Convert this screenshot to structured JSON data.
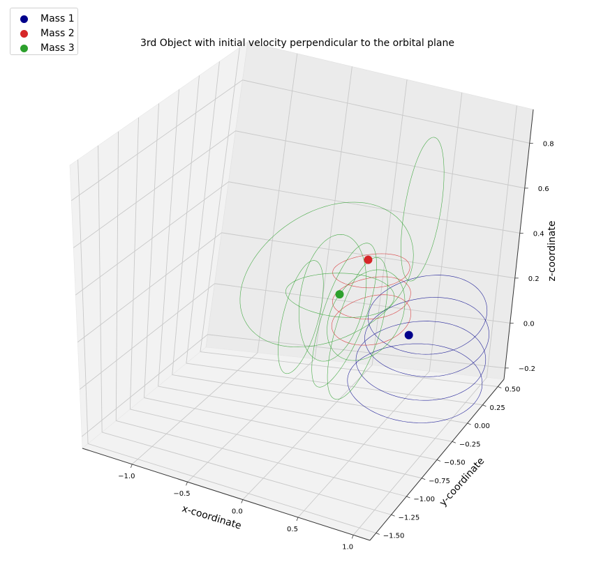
{
  "chart_data": {
    "type": "scatter",
    "projection": "3d",
    "title": "3rd Object with initial velocity perpendicular to the orbital plane",
    "xlabel": "x-coordinate",
    "ylabel": "y-coordinate",
    "zlabel": "z-coordinate",
    "xlim": [
      -1.45,
      1.15
    ],
    "ylim": [
      -1.6,
      0.6
    ],
    "zlim": [
      -0.25,
      0.95
    ],
    "x_ticks": [
      -1.0,
      -0.5,
      0.0,
      0.5,
      1.0
    ],
    "x_tick_labels": [
      "−1.0",
      "−0.5",
      "0.0",
      "0.5",
      "1.0"
    ],
    "y_ticks": [
      -1.5,
      -1.25,
      -1.0,
      -0.75,
      -0.5,
      -0.25,
      0.0,
      0.25,
      0.5
    ],
    "y_tick_labels": [
      "−1.50",
      "−1.25",
      "−1.00",
      "−0.75",
      "−0.50",
      "−0.25",
      "0.00",
      "0.25",
      "0.50"
    ],
    "z_ticks": [
      -0.2,
      0.0,
      0.2,
      0.4,
      0.6,
      0.8
    ],
    "z_tick_labels": [
      "−0.2",
      "0.0",
      "0.2",
      "0.4",
      "0.6",
      "0.8"
    ],
    "grid": true,
    "legend_position": "top-left",
    "series": [
      {
        "name": "Mass 1",
        "color": "#00008b",
        "final_position": {
          "x": 0.45,
          "y": 0.15,
          "z": 0.05
        }
      },
      {
        "name": "Mass 2",
        "color": "#d62728",
        "final_position": {
          "x": 0.05,
          "y": 0.0,
          "z": 0.4
        }
      },
      {
        "name": "Mass 3",
        "color": "#2ca02c",
        "final_position": {
          "x": -0.2,
          "y": 0.2,
          "z": 0.15
        }
      }
    ]
  }
}
